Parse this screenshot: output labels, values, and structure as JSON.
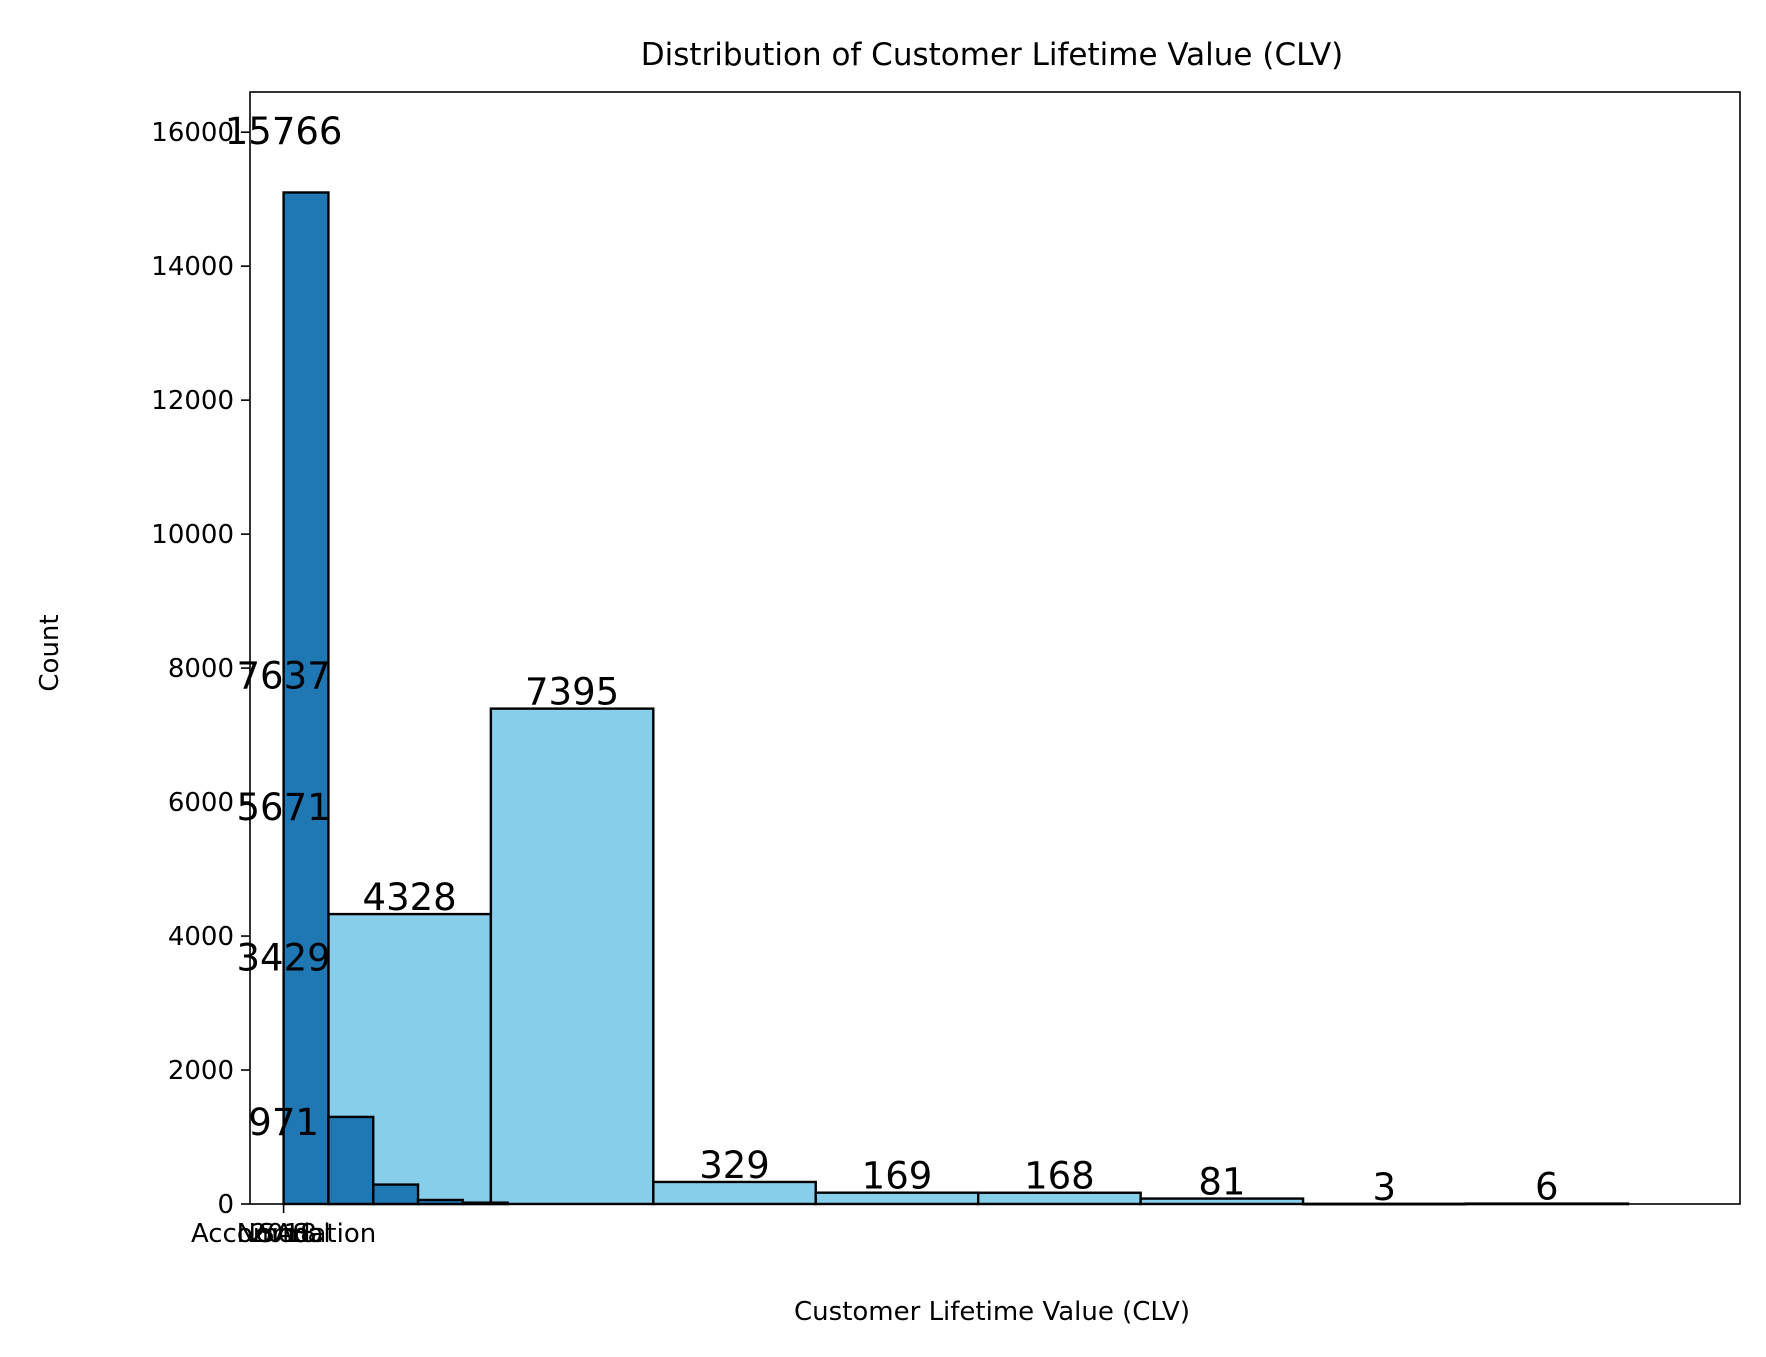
{
  "chart_data": {
    "type": "bar",
    "title": "Distribution of Customer Lifetime Value (CLV)",
    "xlabel": "Customer Lifetime Value (CLV)",
    "ylabel": "Count",
    "ylim": [
      0,
      16600
    ],
    "y_ticks": [
      0,
      2000,
      4000,
      6000,
      8000,
      10000,
      12000,
      14000,
      16000
    ],
    "x_tick_labels": [
      "2018",
      "SAS",
      "Normal",
      "Accomodation"
    ],
    "grid": false,
    "legend": "none",
    "colors": {
      "dark_bars": "#1f77b4",
      "light_bars": "#87ceeb",
      "edge": "#000000"
    },
    "dark_bars": [
      {
        "left": 0.0,
        "right": 0.4,
        "value": 15100
      },
      {
        "left": 0.4,
        "right": 0.8,
        "value": 1300
      },
      {
        "left": 0.8,
        "right": 1.2,
        "value": 290
      },
      {
        "left": 1.2,
        "right": 1.6,
        "value": 60
      },
      {
        "left": 1.6,
        "right": 2.0,
        "value": 20
      }
    ],
    "light_bars": [
      {
        "left": 0.4,
        "right": 1.85,
        "value": 4328
      },
      {
        "left": 1.85,
        "right": 3.3,
        "value": 7395
      },
      {
        "left": 3.3,
        "right": 4.75,
        "value": 329
      },
      {
        "left": 4.75,
        "right": 6.2,
        "value": 169
      },
      {
        "left": 6.2,
        "right": 7.65,
        "value": 168
      },
      {
        "left": 7.65,
        "right": 9.1,
        "value": 81
      },
      {
        "left": 9.1,
        "right": 10.55,
        "value": 3
      },
      {
        "left": 10.55,
        "right": 12.0,
        "value": 6
      }
    ],
    "annotations": [
      {
        "text": "15766",
        "x": 0.0,
        "y": 15766
      },
      {
        "text": "7637",
        "x": 0.0,
        "y": 7637
      },
      {
        "text": "5671",
        "x": 0.0,
        "y": 5671
      },
      {
        "text": "3429",
        "x": 0.0,
        "y": 3429
      },
      {
        "text": "971",
        "x": 0.0,
        "y": 971
      },
      {
        "text": "4328",
        "x": 1.125,
        "y": 4328
      },
      {
        "text": "7395",
        "x": 2.575,
        "y": 7395
      },
      {
        "text": "329",
        "x": 4.025,
        "y": 329
      },
      {
        "text": "169",
        "x": 5.475,
        "y": 169
      },
      {
        "text": "168",
        "x": 6.925,
        "y": 168
      },
      {
        "text": "81",
        "x": 8.375,
        "y": 81
      },
      {
        "text": "3",
        "x": 9.825,
        "y": 3
      },
      {
        "text": "6",
        "x": 11.275,
        "y": 6
      }
    ]
  }
}
